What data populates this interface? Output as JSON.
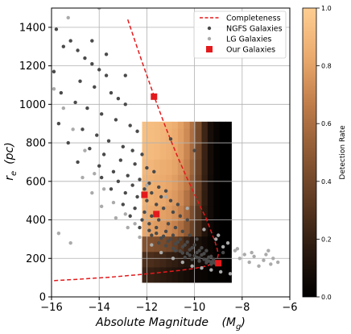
{
  "chart_data": {
    "type": "scatter",
    "xlabel": "Absolute Magnitude",
    "xlabel_symbol": "(M",
    "xlabel_sub": "g",
    "xlabel_close": ")",
    "ylabel_symbol": "r",
    "ylabel_sub": "e",
    "ylabel_unit": "(pc)",
    "xlim": [
      -16,
      -6
    ],
    "ylim": [
      0,
      1500
    ],
    "x_ticks": [
      -16,
      -14,
      -12,
      -10,
      -8,
      -6
    ],
    "x_tick_labels": [
      "−16",
      "−14",
      "−12",
      "−10",
      "−8",
      "−6"
    ],
    "y_ticks": [
      0,
      200,
      400,
      600,
      800,
      1000,
      1200,
      1400
    ],
    "y_tick_labels": [
      "0",
      "200",
      "400",
      "600",
      "800",
      "1000",
      "1200",
      "1400"
    ],
    "grid": true,
    "legend_position": "top-right",
    "legend": [
      "Completeness",
      "NGFS Galaxies",
      "LG Galaxies",
      "Our Galaxies"
    ],
    "colorbar": {
      "label": "Detection Rate",
      "range": [
        0,
        1
      ],
      "ticks": [
        0.0,
        0.2,
        0.4,
        0.6,
        0.8,
        1.0
      ],
      "tick_labels": [
        "0.0",
        "0.2",
        "0.4",
        "0.6",
        "0.8",
        "1.0"
      ],
      "colors": [
        "#000000",
        "#2c1a10",
        "#5e3a22",
        "#8f5a34",
        "#c17d4a",
        "#ebaa6d",
        "#ffce92"
      ]
    },
    "heatmap": {
      "x_edges": [
        -12.2,
        -11.95,
        -11.7,
        -11.45,
        -11.2,
        -10.95,
        -10.7,
        -10.45,
        -10.2,
        -9.95,
        -9.7,
        -9.45,
        -9.2,
        -8.95,
        -8.7,
        -8.45
      ],
      "y_edges": [
        75,
        155,
        235,
        315,
        395,
        475,
        555,
        635,
        715,
        795,
        875,
        910
      ],
      "values": [
        [
          0.22,
          0.2,
          0.18,
          0.16,
          0.14,
          0.12,
          0.1,
          0.08,
          0.06,
          0.04,
          0.03,
          0.02,
          0.01,
          0.01,
          0.0
        ],
        [
          0.28,
          0.27,
          0.25,
          0.23,
          0.2,
          0.18,
          0.15,
          0.12,
          0.1,
          0.08,
          0.06,
          0.04,
          0.02,
          0.01,
          0.0
        ],
        [
          0.46,
          0.45,
          0.44,
          0.42,
          0.4,
          0.36,
          0.3,
          0.22,
          0.15,
          0.1,
          0.06,
          0.03,
          0.01,
          0.0,
          0.0
        ],
        [
          0.82,
          0.8,
          0.78,
          0.76,
          0.72,
          0.68,
          0.6,
          0.5,
          0.38,
          0.25,
          0.13,
          0.05,
          0.02,
          0.0,
          0.0
        ],
        [
          0.85,
          0.84,
          0.82,
          0.8,
          0.78,
          0.74,
          0.68,
          0.58,
          0.44,
          0.3,
          0.16,
          0.07,
          0.02,
          0.0,
          0.0
        ],
        [
          0.87,
          0.86,
          0.84,
          0.83,
          0.8,
          0.77,
          0.72,
          0.62,
          0.5,
          0.35,
          0.18,
          0.07,
          0.02,
          0.0,
          0.0
        ],
        [
          0.88,
          0.87,
          0.85,
          0.84,
          0.82,
          0.79,
          0.74,
          0.66,
          0.52,
          0.36,
          0.19,
          0.07,
          0.02,
          0.0,
          0.0
        ],
        [
          0.9,
          0.89,
          0.87,
          0.85,
          0.84,
          0.81,
          0.76,
          0.68,
          0.55,
          0.38,
          0.2,
          0.08,
          0.02,
          0.0,
          0.0
        ],
        [
          0.92,
          0.91,
          0.9,
          0.88,
          0.86,
          0.83,
          0.78,
          0.7,
          0.58,
          0.4,
          0.21,
          0.08,
          0.02,
          0.0,
          0.0
        ],
        [
          0.93,
          0.92,
          0.91,
          0.89,
          0.87,
          0.84,
          0.79,
          0.72,
          0.6,
          0.42,
          0.22,
          0.09,
          0.03,
          0.0,
          0.0
        ],
        [
          0.93,
          0.92,
          0.91,
          0.9,
          0.88,
          0.85,
          0.8,
          0.73,
          0.61,
          0.43,
          0.22,
          0.09,
          0.03,
          0.0,
          0.0
        ]
      ]
    },
    "series": [
      {
        "name": "Completeness",
        "style": "dashed-line",
        "color": "#e31a1c",
        "x": [
          -12.8,
          -12.5,
          -12.2,
          -11.9,
          -11.6,
          -11.3,
          -11.0,
          -10.7,
          -10.4,
          -10.1,
          -9.8,
          -9.5,
          -9.3,
          -9.15,
          -9.05,
          -9.0,
          -9.05,
          -9.2,
          -9.5,
          -10.0,
          -10.6,
          -11.2,
          -11.8,
          -12.4,
          -13.0,
          -13.6,
          -14.2,
          -14.8,
          -15.4,
          -16.0
        ],
        "y": [
          1440,
          1330,
          1220,
          1115,
          1010,
          910,
          815,
          725,
          640,
          560,
          480,
          405,
          340,
          290,
          250,
          220,
          195,
          175,
          160,
          148,
          138,
          130,
          122,
          115,
          108,
          102,
          97,
          92,
          88,
          84
        ]
      },
      {
        "name": "NGFS Galaxies",
        "style": "points",
        "color": "#4a4a4a",
        "x": [
          -15.8,
          -15.2,
          -14.9,
          -14.6,
          -14.3,
          -14.0,
          -13.7,
          -15.5,
          -14.8,
          -14.2,
          -13.5,
          -13.2,
          -12.9,
          -15.0,
          -14.5,
          -13.9,
          -13.3,
          -12.7,
          -12.4,
          -15.7,
          -14.7,
          -14.1,
          -13.6,
          -13.0,
          -12.6,
          -12.2,
          -15.3,
          -14.4,
          -13.8,
          -13.1,
          -12.5,
          -12.0,
          -11.7,
          -14.9,
          -14.0,
          -13.4,
          -12.8,
          -12.3,
          -11.9,
          -11.5,
          -11.2,
          -13.9,
          -13.2,
          -12.6,
          -12.1,
          -11.8,
          -11.4,
          -11.0,
          -10.7,
          -13.5,
          -12.9,
          -12.4,
          -12.0,
          -11.6,
          -11.3,
          -10.9,
          -10.6,
          -10.3,
          -13.0,
          -12.5,
          -12.1,
          -11.8,
          -11.5,
          -11.1,
          -10.8,
          -10.5,
          -10.2,
          -9.9,
          -12.7,
          -12.2,
          -11.9,
          -11.6,
          -11.2,
          -10.9,
          -10.6,
          -10.3,
          -10.0,
          -9.7,
          -9.5,
          -12.3,
          -11.9,
          -11.6,
          -11.3,
          -11.0,
          -10.7,
          -10.4,
          -10.1,
          -9.8,
          -9.6,
          -9.3,
          -11.8,
          -11.4,
          -11.1,
          -10.8,
          -10.5,
          -10.2,
          -9.9,
          -9.7,
          -9.4,
          -9.2,
          -11.5,
          -11.2,
          -10.9,
          -10.6,
          -10.3,
          -10.0,
          -9.8,
          -9.5,
          -9.3,
          -9.1,
          -10.8,
          -10.5,
          -10.2,
          -9.9,
          -9.6,
          -9.4,
          -9.2,
          -10.4,
          -10.1,
          -9.8,
          -9.5,
          -9.3,
          -15.9,
          -15.6,
          -14.3,
          -13.7,
          -12.9,
          -11.0,
          -10.0,
          -9.0,
          -8.8
        ],
        "y": [
          1390,
          1330,
          1280,
          1240,
          1210,
          1180,
          1150,
          1300,
          1120,
          1090,
          1060,
          1030,
          1000,
          1010,
          980,
          950,
          920,
          890,
          860,
          900,
          870,
          840,
          810,
          780,
          760,
          740,
          800,
          770,
          740,
          710,
          690,
          670,
          650,
          700,
          680,
          650,
          630,
          610,
          590,
          570,
          550,
          620,
          600,
          580,
          560,
          540,
          520,
          500,
          480,
          560,
          540,
          520,
          500,
          480,
          460,
          440,
          420,
          400,
          480,
          460,
          440,
          420,
          400,
          380,
          360,
          340,
          320,
          300,
          420,
          400,
          380,
          360,
          340,
          320,
          300,
          285,
          270,
          255,
          240,
          360,
          345,
          330,
          315,
          300,
          285,
          270,
          255,
          240,
          225,
          210,
          320,
          305,
          290,
          275,
          260,
          245,
          230,
          218,
          206,
          195,
          280,
          266,
          252,
          238,
          226,
          214,
          202,
          192,
          182,
          172,
          240,
          228,
          216,
          205,
          195,
          186,
          178,
          205,
          195,
          186,
          178,
          170,
          1170,
          1060,
          1330,
          1260,
          1150,
          820,
          760,
          180,
          230
        ]
      },
      {
        "name": "LG Galaxies",
        "style": "points",
        "color": "#aaaaaa",
        "x": [
          -15.9,
          -15.5,
          -15.1,
          -14.6,
          -14.2,
          -13.8,
          -13.4,
          -12.9,
          -12.5,
          -15.7,
          -15.2,
          -14.7,
          -14.3,
          -13.9,
          -13.3,
          -12.8,
          -12.3,
          -11.8,
          -11.4,
          -10.9,
          -10.5,
          -10.1,
          -9.7,
          -9.3,
          -8.9,
          -8.5,
          -8.1,
          -7.7,
          -7.3,
          -7.0,
          -6.7,
          -6.5,
          -8.8,
          -8.3,
          -7.9,
          -7.5,
          -7.1,
          -6.8,
          -9.1,
          -8.6,
          -8.2,
          -7.6,
          -6.9,
          -12.0,
          -11.2,
          -10.3,
          -9.6,
          -9.0,
          -15.3,
          -14.0
        ],
        "y": [
          1080,
          980,
          870,
          760,
          640,
          560,
          490,
          430,
          380,
          330,
          280,
          620,
          540,
          470,
          410,
          360,
          310,
          270,
          230,
          200,
          180,
          160,
          150,
          140,
          130,
          120,
          200,
          180,
          160,
          220,
          200,
          180,
          260,
          240,
          220,
          210,
          190,
          170,
          300,
          280,
          250,
          230,
          240,
          580,
          520,
          460,
          350,
          320,
          1450,
          1500
        ]
      },
      {
        "name": "Our Galaxies",
        "style": "squares",
        "color": "#e31a1c",
        "x": [
          -11.7,
          -12.1,
          -11.6,
          -9.0
        ],
        "y": [
          1040,
          530,
          430,
          175
        ]
      }
    ]
  }
}
